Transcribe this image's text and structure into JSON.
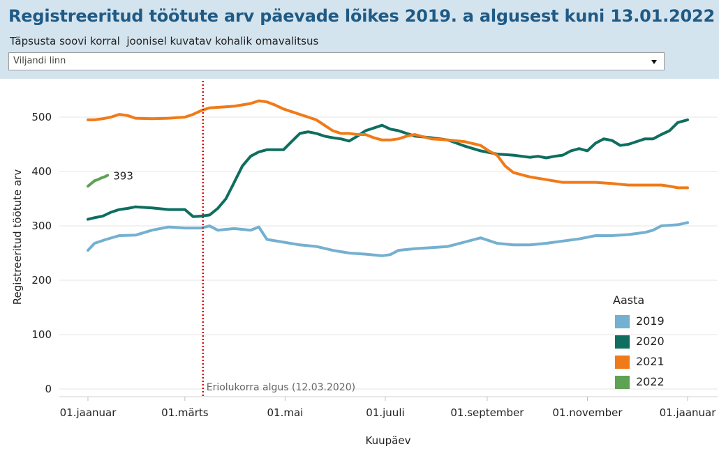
{
  "header": {
    "title": "Registreeritud töötute arv päevade lõikes 2019. a algusest kuni 13.01.2022",
    "filter_label": "Täpsusta soovi korral  joonisel kuvatav kohalik omavalitsus",
    "dropdown_value": "Viljandi linn",
    "dropdown_icon": "caret-down-icon"
  },
  "colors": {
    "header_bg": "#d4e4ee",
    "title": "#1f5a85",
    "2019": "#74b0d0",
    "2020": "#0e6e5f",
    "2021": "#f07a18",
    "2022": "#5fa155",
    "annotation_line": "#e01010"
  },
  "chart_data": {
    "type": "line",
    "xlabel": "Kuupäev",
    "ylabel": "Registreeritud töötute arv",
    "ylim": [
      0,
      550
    ],
    "yticks": [
      0,
      100,
      200,
      300,
      400,
      500
    ],
    "xlim": [
      0,
      366
    ],
    "xticks": [
      {
        "day": 1,
        "label": "01.jaanuar"
      },
      {
        "day": 60,
        "label": "01.märts"
      },
      {
        "day": 121,
        "label": "01.mai"
      },
      {
        "day": 182,
        "label": "01.juuli"
      },
      {
        "day": 244,
        "label": "01.september"
      },
      {
        "day": 305,
        "label": "01.november"
      },
      {
        "day": 366,
        "label": "01.jaanuar"
      }
    ],
    "grid": true,
    "legend": {
      "title": "Aasta",
      "placement": "bottom-right"
    },
    "series": [
      {
        "name": "2019",
        "color": "#74b0d0",
        "x": [
          1,
          5,
          12,
          20,
          30,
          40,
          50,
          60,
          70,
          75,
          80,
          90,
          100,
          105,
          110,
          120,
          130,
          140,
          150,
          160,
          170,
          180,
          185,
          190,
          200,
          210,
          220,
          230,
          240,
          250,
          260,
          270,
          280,
          290,
          300,
          310,
          320,
          330,
          340,
          345,
          350,
          360,
          366
        ],
        "y": [
          255,
          268,
          275,
          282,
          283,
          292,
          298,
          296,
          296,
          300,
          292,
          295,
          292,
          298,
          275,
          270,
          265,
          262,
          255,
          250,
          248,
          245,
          247,
          255,
          258,
          260,
          262,
          270,
          278,
          268,
          265,
          265,
          268,
          272,
          276,
          282,
          282,
          284,
          288,
          292,
          300,
          302,
          306
        ]
      },
      {
        "name": "2020",
        "color": "#0e6e5f",
        "x": [
          1,
          5,
          10,
          15,
          20,
          25,
          30,
          40,
          50,
          60,
          65,
          70,
          75,
          80,
          85,
          90,
          95,
          100,
          105,
          110,
          115,
          120,
          125,
          130,
          135,
          140,
          145,
          150,
          155,
          160,
          165,
          170,
          175,
          180,
          185,
          190,
          195,
          200,
          210,
          220,
          230,
          240,
          250,
          260,
          270,
          275,
          280,
          285,
          290,
          295,
          300,
          305,
          310,
          315,
          320,
          325,
          330,
          335,
          340,
          345,
          350,
          355,
          360,
          366
        ],
        "y": [
          312,
          315,
          318,
          325,
          330,
          332,
          335,
          333,
          330,
          330,
          317,
          318,
          320,
          332,
          350,
          380,
          410,
          428,
          436,
          440,
          440,
          440,
          455,
          470,
          473,
          470,
          465,
          462,
          460,
          456,
          465,
          475,
          480,
          485,
          478,
          475,
          470,
          465,
          462,
          458,
          447,
          438,
          432,
          430,
          426,
          428,
          425,
          428,
          430,
          438,
          442,
          438,
          452,
          460,
          457,
          448,
          450,
          455,
          460,
          460,
          468,
          475,
          490,
          495
        ]
      },
      {
        "name": "2021",
        "color": "#f07a18",
        "x": [
          1,
          5,
          10,
          15,
          20,
          25,
          30,
          40,
          50,
          60,
          65,
          70,
          75,
          80,
          90,
          100,
          105,
          110,
          115,
          120,
          125,
          130,
          135,
          140,
          145,
          150,
          155,
          160,
          165,
          170,
          175,
          180,
          185,
          190,
          195,
          200,
          210,
          220,
          230,
          240,
          245,
          250,
          255,
          260,
          270,
          280,
          290,
          295,
          300,
          310,
          320,
          330,
          340,
          350,
          355,
          360,
          366
        ],
        "y": [
          495,
          495,
          497,
          500,
          505,
          503,
          498,
          497,
          498,
          500,
          505,
          512,
          517,
          518,
          520,
          525,
          530,
          528,
          522,
          515,
          510,
          505,
          500,
          495,
          485,
          475,
          470,
          470,
          468,
          468,
          462,
          458,
          458,
          460,
          465,
          468,
          460,
          458,
          455,
          448,
          438,
          430,
          410,
          398,
          390,
          385,
          380,
          380,
          380,
          380,
          378,
          375,
          375,
          375,
          373,
          370,
          370
        ]
      },
      {
        "name": "2022",
        "color": "#5fa155",
        "x": [
          1,
          3,
          5,
          7,
          9,
          11,
          13
        ],
        "y": [
          373,
          378,
          383,
          385,
          388,
          390,
          393
        ],
        "end_label": "393"
      }
    ],
    "annotations": [
      {
        "type": "vline",
        "x": 71,
        "label": "Eriolukorra algus (12.03.2020)",
        "color": "#e01010",
        "style": "dotted"
      }
    ]
  }
}
